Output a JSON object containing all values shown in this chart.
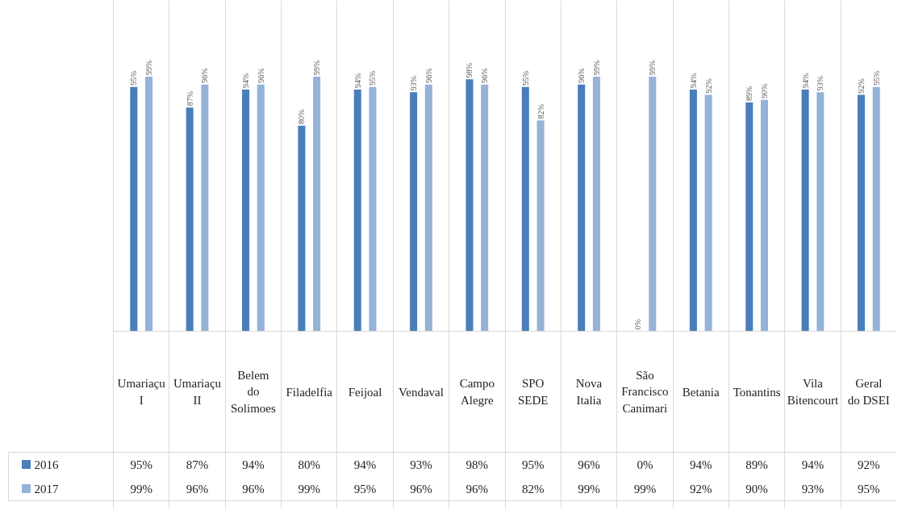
{
  "chart_data": {
    "type": "bar",
    "categories": [
      "Umariaçu I",
      "Umariaçu II",
      "Belem do Solimoes",
      "Filadelfia",
      "Feijoal",
      "Vendaval",
      "Campo Alegre",
      "SPO SEDE",
      "Nova Italia",
      "São Francisco Canimari",
      "Betania",
      "Tonantins",
      "Vila Bitencourt",
      "Geral do DSEI"
    ],
    "series": [
      {
        "name": "2016",
        "color": "#4a7ebb",
        "values": [
          95,
          87,
          94,
          80,
          94,
          93,
          98,
          95,
          96,
          0,
          94,
          89,
          94,
          92
        ],
        "value_labels": [
          "95%",
          "87%",
          "94%",
          "80%",
          "94%",
          "93%",
          "98%",
          "95%",
          "96%",
          "0%",
          "94%",
          "89%",
          "94%",
          "92%"
        ]
      },
      {
        "name": "2017",
        "color": "#95b3d7",
        "values": [
          99,
          96,
          96,
          99,
          95,
          96,
          96,
          82,
          99,
          99,
          92,
          90,
          93,
          95
        ],
        "value_labels": [
          "99%",
          "96%",
          "96%",
          "99%",
          "95%",
          "96%",
          "96%",
          "82%",
          "99%",
          "99%",
          "92%",
          "90%",
          "93%",
          "95%"
        ]
      }
    ],
    "grid": "x",
    "legend": "bottom"
  }
}
